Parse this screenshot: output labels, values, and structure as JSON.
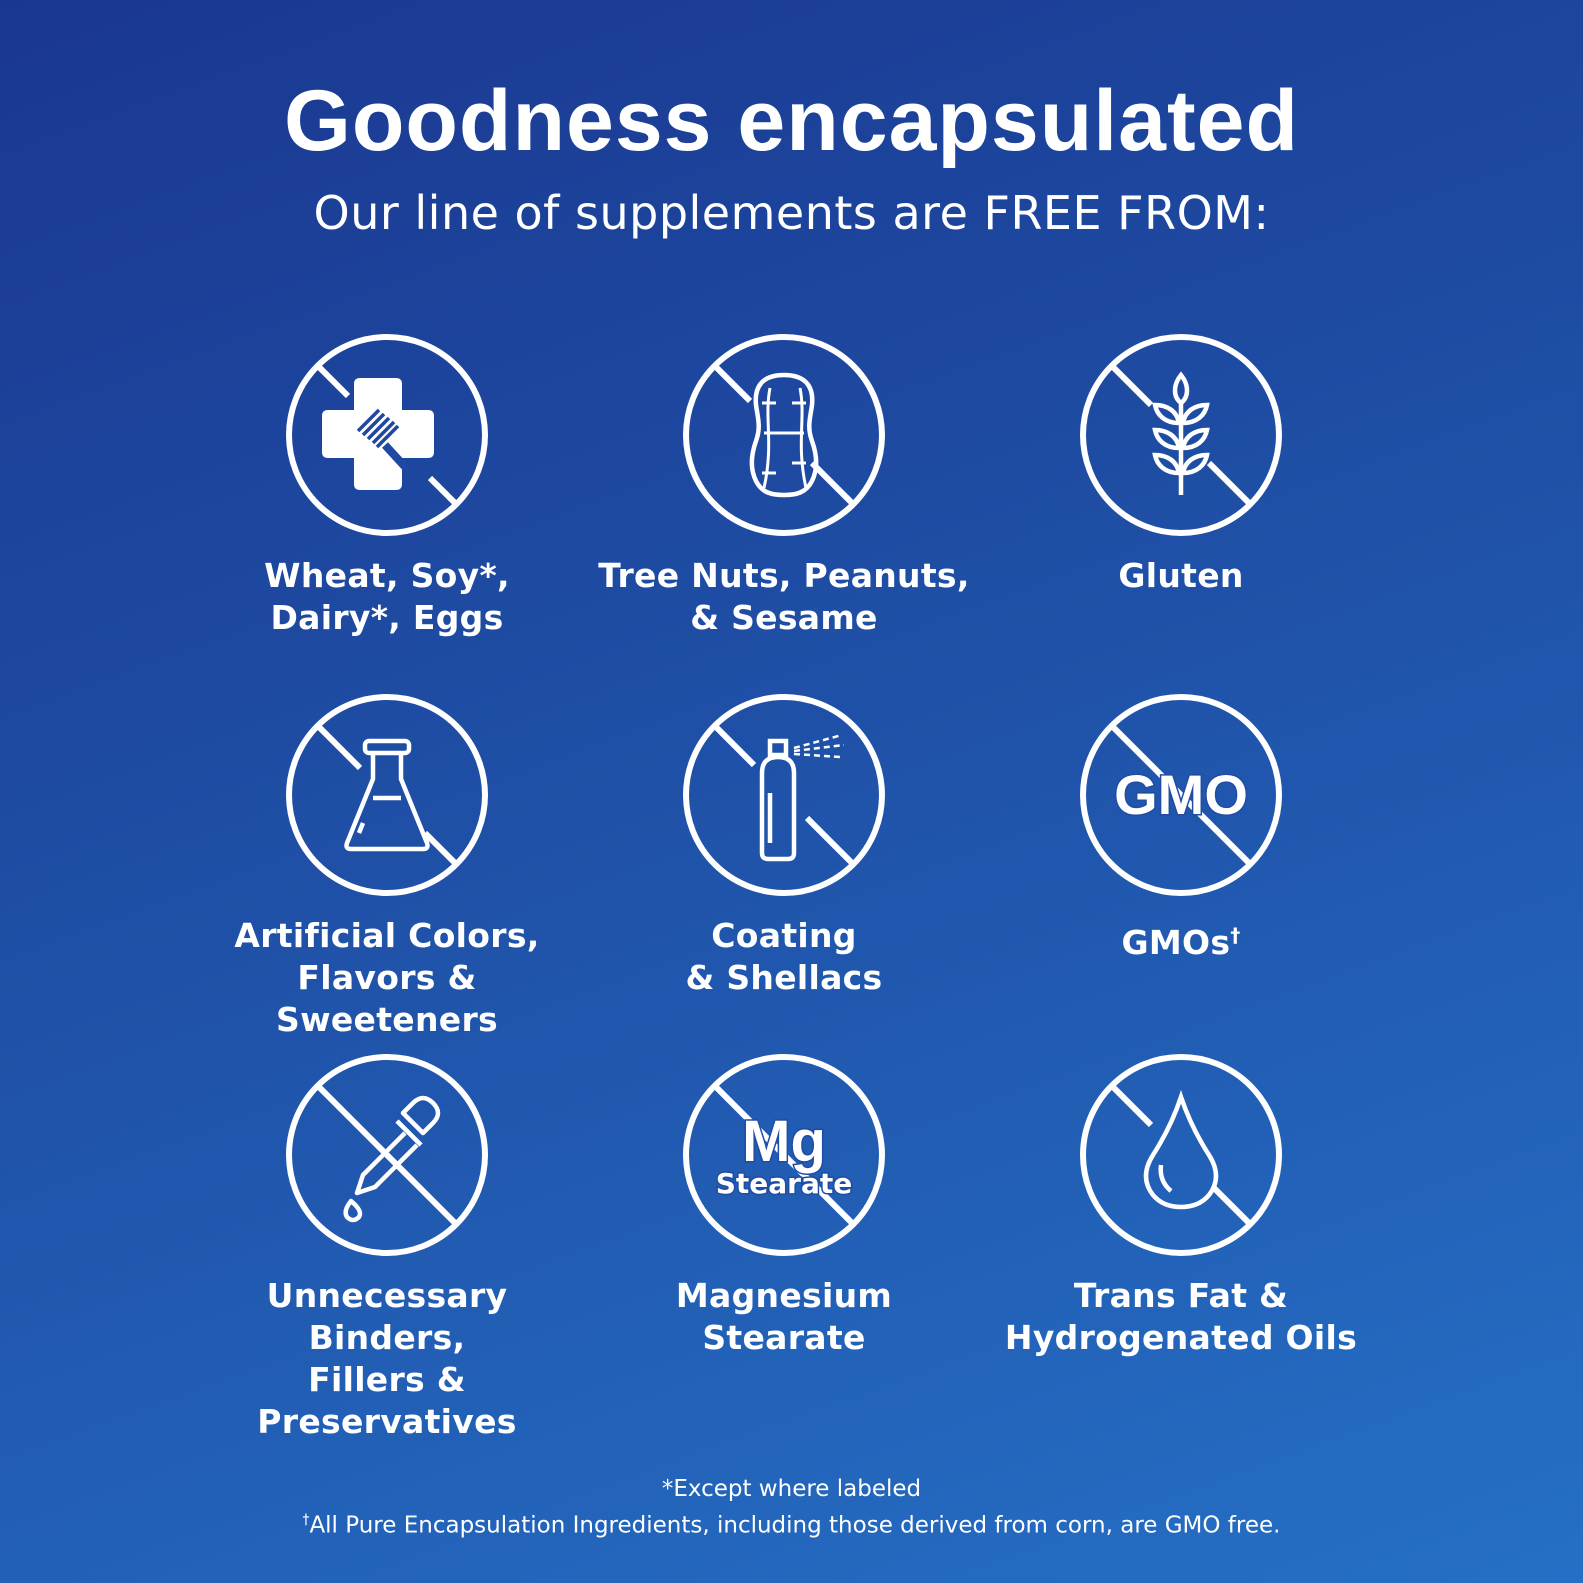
{
  "header": {
    "title": "Goodness encapsulated",
    "subtitle": "Our line of supplements are FREE FROM:"
  },
  "items": [
    {
      "icon": "wheat-soy-dairy-eggs-icon",
      "line1": "Wheat, Soy*,",
      "line2": "Dairy*, Eggs"
    },
    {
      "icon": "peanut-icon",
      "line1": "Tree Nuts, Peanuts,",
      "line2": "& Sesame"
    },
    {
      "icon": "wheat-stalk-icon",
      "line1": "Gluten",
      "line2": ""
    },
    {
      "icon": "flask-icon",
      "line1": "Artificial Colors,",
      "line2": "Flavors & Sweeteners"
    },
    {
      "icon": "spray-can-icon",
      "line1": "Coating",
      "line2": "& Shellacs"
    },
    {
      "icon": "gmo-icon",
      "icon_text": "GMO",
      "line1": "GMOs",
      "line1_sup": "†",
      "line2": ""
    },
    {
      "icon": "dropper-icon",
      "line1": "Unnecessary Binders,",
      "line2": "Fillers & Preservatives"
    },
    {
      "icon": "mg-stearate-icon",
      "icon_text": "Mg",
      "icon_subtext": "Stearate",
      "line1": "Magnesium",
      "line2": "Stearate"
    },
    {
      "icon": "oil-drop-icon",
      "line1": "Trans Fat &",
      "line2": "Hydrogenated Oils"
    }
  ],
  "footnotes": {
    "except": "*Except where labeled",
    "gmo_mark": "†",
    "gmo": "All Pure Encapsulation Ingredients, including those derived from corn, are GMO free."
  },
  "colors": {
    "background_top": "#1a3790",
    "background_bottom": "#2570c6",
    "foreground": "#ffffff"
  }
}
